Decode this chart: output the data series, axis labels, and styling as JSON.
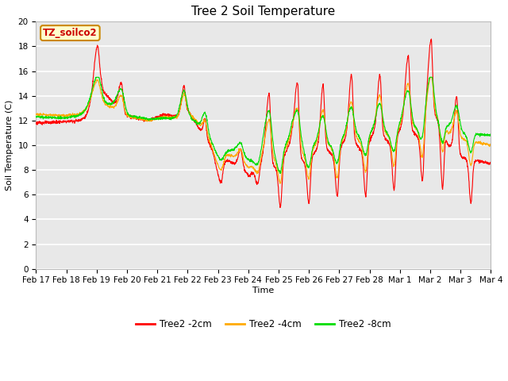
{
  "title": "Tree 2 Soil Temperature",
  "xlabel": "Time",
  "ylabel": "Soil Temperature (C)",
  "ylim": [
    0,
    20
  ],
  "yticks": [
    0,
    2,
    4,
    6,
    8,
    10,
    12,
    14,
    16,
    18,
    20
  ],
  "xtick_labels": [
    "Feb 17",
    "Feb 18",
    "Feb 19",
    "Feb 20",
    "Feb 21",
    "Feb 22",
    "Feb 23",
    "Feb 24",
    "Feb 25",
    "Feb 26",
    "Feb 27",
    "Feb 28",
    "Mar 1",
    "Mar 2",
    "Mar 3",
    "Mar 4"
  ],
  "legend_labels": [
    "Tree2 -2cm",
    "Tree2 -4cm",
    "Tree2 -8cm"
  ],
  "line_colors": [
    "#ff0000",
    "#ffaa00",
    "#00dd00"
  ],
  "box_label": "TZ_soilco2",
  "box_facecolor": "#ffffcc",
  "box_edgecolor": "#cc8800",
  "box_textcolor": "#cc0000",
  "fig_facecolor": "#ffffff",
  "plot_facecolor": "#e8e8e8",
  "grid_color": "#ffffff",
  "title_fontsize": 11,
  "axis_label_fontsize": 8,
  "tick_fontsize": 7.5,
  "linewidth": 0.8
}
